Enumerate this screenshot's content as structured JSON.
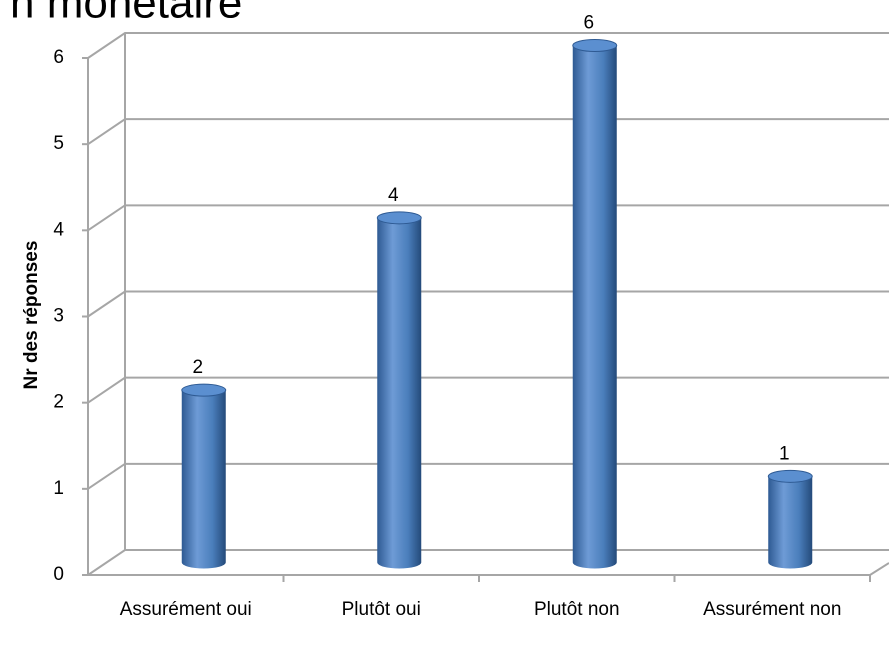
{
  "chart_data": {
    "type": "bar",
    "title": "n monétaire",
    "y_label": "Nr des réponses",
    "categories": [
      "Assurément oui",
      "Plutôt oui",
      "Plutôt non",
      "Assurément non"
    ],
    "values": [
      2,
      4,
      6,
      1
    ],
    "color": "#4a7ebb",
    "ylim": [
      0,
      6
    ],
    "yticks": [
      0,
      1,
      2,
      3,
      4,
      5,
      6
    ],
    "grid": true
  }
}
